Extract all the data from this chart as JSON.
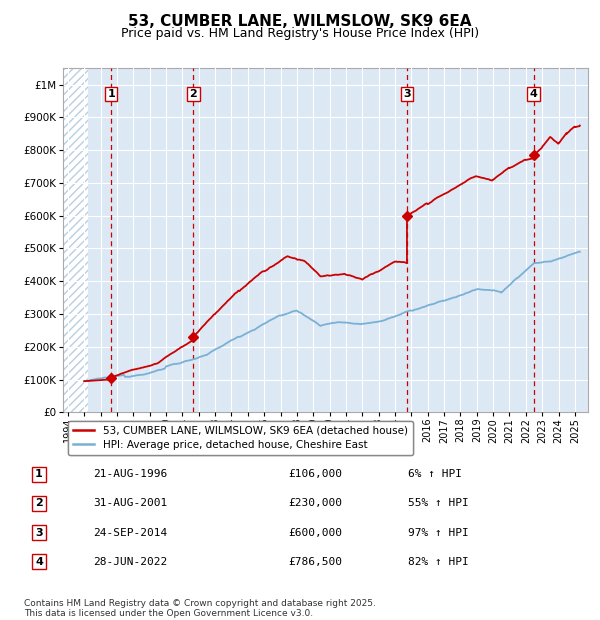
{
  "title": "53, CUMBER LANE, WILMSLOW, SK9 6EA",
  "subtitle": "Price paid vs. HM Land Registry's House Price Index (HPI)",
  "title_fontsize": 11,
  "subtitle_fontsize": 9,
  "background_color": "#ffffff",
  "plot_bg_color": "#dce9f5",
  "grid_color": "#ffffff",
  "sale_color": "#cc0000",
  "hpi_color": "#7ab0d4",
  "ylim": [
    0,
    1050000
  ],
  "ytick_labels": [
    "£0",
    "£100K",
    "£200K",
    "£300K",
    "£400K",
    "£500K",
    "£600K",
    "£700K",
    "£800K",
    "£900K",
    "£1M"
  ],
  "xlim_start": 1993.7,
  "xlim_end": 2025.8,
  "hatch_end": 1995.2,
  "xtick_labels": [
    "1994",
    "1995",
    "1996",
    "1997",
    "1998",
    "1999",
    "2000",
    "2001",
    "2002",
    "2003",
    "2004",
    "2005",
    "2006",
    "2007",
    "2008",
    "2009",
    "2010",
    "2011",
    "2012",
    "2013",
    "2014",
    "2015",
    "2016",
    "2017",
    "2018",
    "2019",
    "2020",
    "2021",
    "2022",
    "2023",
    "2024",
    "2025"
  ],
  "sale_dates": [
    1996.64,
    2001.66,
    2014.73,
    2022.49
  ],
  "sale_prices": [
    106000,
    230000,
    600000,
    786500
  ],
  "sale_labels": [
    "1",
    "2",
    "3",
    "4"
  ],
  "vline_color": "#cc0000",
  "legend_sale_label": "53, CUMBER LANE, WILMSLOW, SK9 6EA (detached house)",
  "legend_hpi_label": "HPI: Average price, detached house, Cheshire East",
  "table_entries": [
    {
      "num": "1",
      "date": "21-AUG-1996",
      "price": "£106,000",
      "pct": "6% ↑ HPI"
    },
    {
      "num": "2",
      "date": "31-AUG-2001",
      "price": "£230,000",
      "pct": "55% ↑ HPI"
    },
    {
      "num": "3",
      "date": "24-SEP-2014",
      "price": "£600,000",
      "pct": "97% ↑ HPI"
    },
    {
      "num": "4",
      "date": "28-JUN-2022",
      "price": "£786,500",
      "pct": "82% ↑ HPI"
    }
  ],
  "footnote": "Contains HM Land Registry data © Crown copyright and database right 2025.\nThis data is licensed under the Open Government Licence v3.0."
}
